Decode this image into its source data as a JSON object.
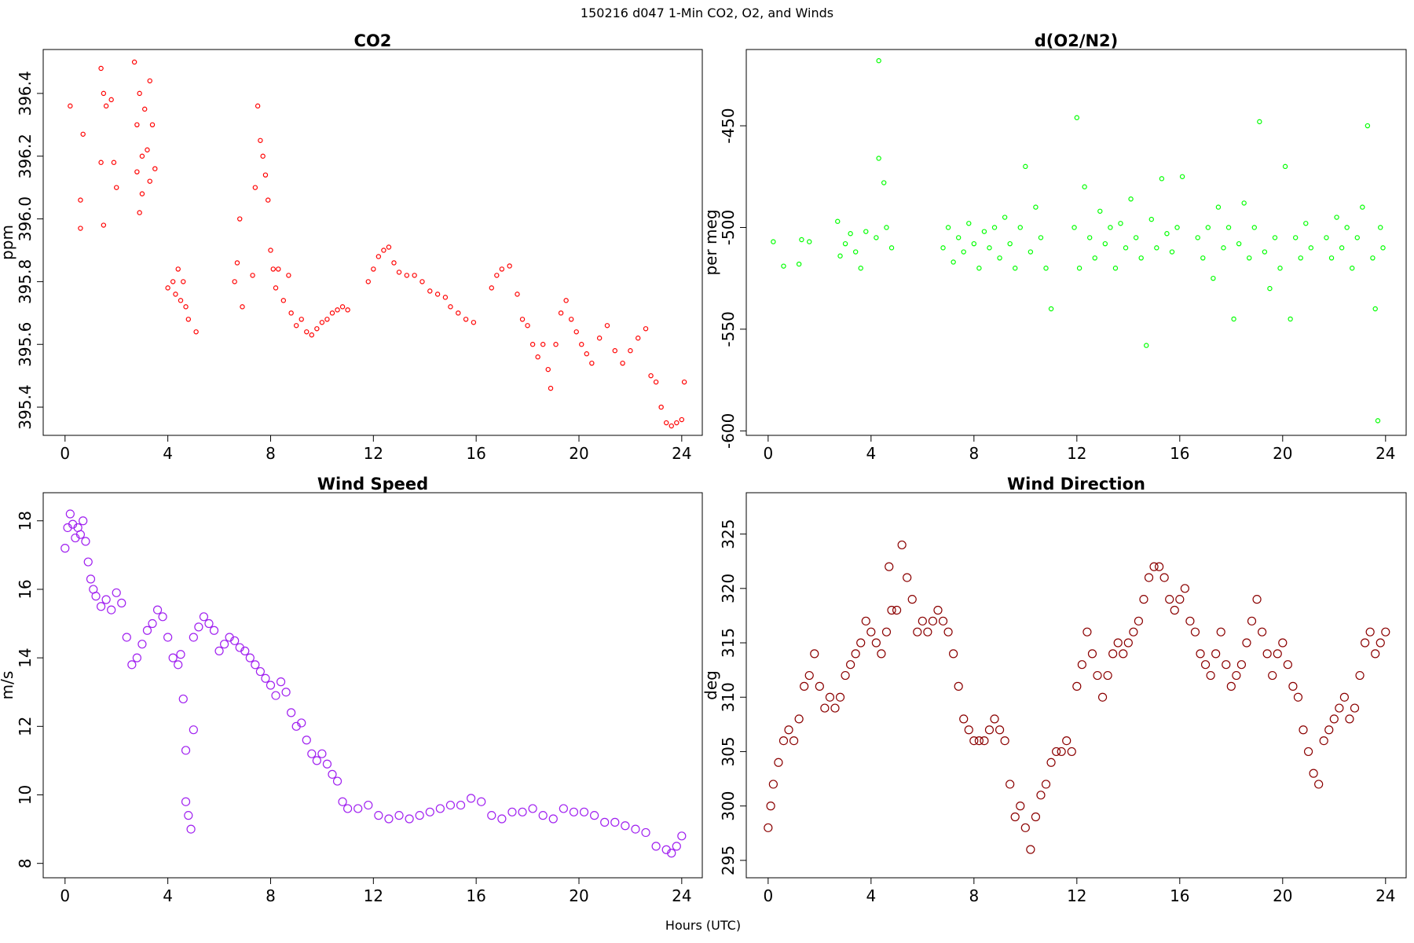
{
  "title": "150216   d047   1-Min CO2, O2, and Winds",
  "xlabel": "Hours (UTC)",
  "chart_data": [
    {
      "type": "scatter",
      "title": "CO2",
      "ylabel": "ppm",
      "color": "#ff0000",
      "x": [
        0.2,
        0.6,
        0.6,
        0.7,
        1.4,
        1.4,
        1.5,
        1.5,
        1.6,
        1.8,
        1.9,
        2.0,
        2.7,
        2.8,
        2.8,
        2.9,
        2.9,
        3.0,
        3.0,
        3.1,
        3.2,
        3.3,
        3.3,
        3.4,
        3.5,
        4.0,
        4.2,
        4.3,
        4.4,
        4.5,
        4.6,
        4.7,
        4.8,
        5.1,
        6.6,
        6.7,
        6.8,
        6.9,
        7.3,
        7.4,
        7.5,
        7.6,
        7.7,
        7.8,
        7.9,
        8.0,
        8.1,
        8.2,
        8.3,
        8.5,
        8.7,
        8.8,
        9.0,
        9.2,
        9.4,
        9.6,
        9.8,
        10.0,
        10.2,
        10.4,
        10.6,
        10.8,
        11.0,
        11.8,
        12.0,
        12.2,
        12.4,
        12.6,
        12.8,
        13.0,
        13.3,
        13.6,
        13.9,
        14.2,
        14.5,
        14.8,
        15.0,
        15.3,
        15.6,
        15.9,
        16.6,
        16.8,
        17.0,
        17.3,
        17.6,
        17.8,
        18.0,
        18.2,
        18.4,
        18.6,
        18.8,
        18.9,
        19.1,
        19.3,
        19.5,
        19.7,
        19.9,
        20.1,
        20.3,
        20.5,
        20.8,
        21.1,
        21.4,
        21.7,
        22.0,
        22.3,
        22.6,
        22.8,
        23.0,
        23.2,
        23.4,
        23.6,
        23.8,
        24.0,
        24.1
      ],
      "values": [
        396.36,
        396.06,
        395.97,
        396.27,
        396.48,
        396.18,
        395.98,
        396.4,
        396.36,
        396.38,
        396.18,
        396.1,
        396.5,
        396.3,
        396.15,
        396.4,
        396.02,
        396.2,
        396.08,
        396.35,
        396.22,
        396.44,
        396.12,
        396.3,
        396.16,
        395.78,
        395.8,
        395.76,
        395.84,
        395.74,
        395.8,
        395.72,
        395.68,
        395.64,
        395.8,
        395.86,
        396.0,
        395.72,
        395.82,
        396.1,
        396.36,
        396.25,
        396.2,
        396.14,
        396.06,
        395.9,
        395.84,
        395.78,
        395.84,
        395.74,
        395.82,
        395.7,
        395.66,
        395.68,
        395.64,
        395.63,
        395.65,
        395.67,
        395.68,
        395.7,
        395.71,
        395.72,
        395.71,
        395.8,
        395.84,
        395.88,
        395.9,
        395.91,
        395.86,
        395.83,
        395.82,
        395.82,
        395.8,
        395.77,
        395.76,
        395.75,
        395.72,
        395.7,
        395.68,
        395.67,
        395.78,
        395.82,
        395.84,
        395.85,
        395.76,
        395.68,
        395.66,
        395.6,
        395.56,
        395.6,
        395.52,
        395.46,
        395.6,
        395.7,
        395.74,
        395.68,
        395.64,
        395.6,
        395.57,
        395.54,
        395.62,
        395.66,
        395.58,
        395.54,
        395.58,
        395.62,
        395.65,
        395.5,
        395.48,
        395.4,
        395.35,
        395.34,
        395.35,
        395.36,
        395.48
      ],
      "xlim": [
        -0.85,
        24.8
      ],
      "xticks": [
        0,
        4,
        8,
        12,
        16,
        20,
        24
      ],
      "ylim": [
        395.31,
        396.54
      ],
      "yticks": [
        395.4,
        395.6,
        395.8,
        {
          "value": 396,
          "label": "396.0"
        },
        396.2,
        396.4
      ]
    },
    {
      "type": "scatter",
      "title": "d(O2/N2)",
      "ylabel": "per meg",
      "color": "#00ff00",
      "x": [
        0.2,
        0.6,
        1.2,
        1.3,
        1.6,
        2.7,
        2.8,
        3.0,
        3.2,
        3.4,
        3.6,
        3.8,
        4.2,
        4.3,
        4.3,
        4.5,
        4.6,
        4.8,
        6.8,
        7.0,
        7.2,
        7.4,
        7.6,
        7.8,
        8.0,
        8.2,
        8.4,
        8.6,
        8.8,
        9.0,
        9.2,
        9.4,
        9.6,
        9.8,
        10.0,
        10.2,
        10.4,
        10.6,
        10.8,
        11.0,
        11.9,
        12.0,
        12.1,
        12.3,
        12.5,
        12.7,
        12.9,
        13.1,
        13.3,
        13.5,
        13.7,
        13.9,
        14.1,
        14.3,
        14.5,
        14.7,
        14.9,
        15.1,
        15.3,
        15.5,
        15.7,
        15.9,
        16.1,
        16.7,
        16.9,
        17.1,
        17.3,
        17.5,
        17.7,
        17.9,
        18.1,
        18.3,
        18.5,
        18.7,
        18.9,
        19.1,
        19.3,
        19.5,
        19.7,
        19.9,
        20.1,
        20.3,
        20.5,
        20.7,
        20.9,
        21.1,
        21.7,
        21.9,
        22.1,
        22.3,
        22.5,
        22.7,
        22.9,
        23.1,
        23.3,
        23.5,
        23.6,
        23.7,
        23.8,
        23.9
      ],
      "values": [
        -507,
        -519,
        -518,
        -506,
        -507,
        -497,
        -514,
        -508,
        -503,
        -512,
        -520,
        -502,
        -505,
        -418,
        -466,
        -478,
        -500,
        -510,
        -510,
        -500,
        -517,
        -505,
        -512,
        -498,
        -508,
        -520,
        -502,
        -510,
        -500,
        -515,
        -495,
        -508,
        -520,
        -500,
        -470,
        -512,
        -490,
        -505,
        -520,
        -540,
        -500,
        -446,
        -520,
        -480,
        -505,
        -515,
        -492,
        -508,
        -500,
        -520,
        -498,
        -510,
        -486,
        -505,
        -515,
        -558,
        -496,
        -510,
        -476,
        -503,
        -512,
        -500,
        -475,
        -505,
        -515,
        -500,
        -525,
        -490,
        -510,
        -500,
        -545,
        -508,
        -488,
        -515,
        -500,
        -448,
        -512,
        -530,
        -505,
        -520,
        -470,
        -545,
        -505,
        -515,
        -498,
        -510,
        -505,
        -515,
        -495,
        -510,
        -500,
        -520,
        -505,
        -490,
        -450,
        -515,
        -540,
        -595,
        -500,
        -510
      ],
      "xlim": [
        -0.85,
        24.8
      ],
      "xticks": [
        0,
        4,
        8,
        12,
        16,
        20,
        24
      ],
      "ylim": [
        -602.2,
        -412.5
      ],
      "yticks": [
        -600,
        -550,
        -500,
        -450
      ]
    },
    {
      "type": "scatter",
      "title": "Wind Speed",
      "ylabel": "m/s",
      "color": "#a020f0",
      "x": [
        0,
        0.1,
        0.2,
        0.3,
        0.4,
        0.5,
        0.6,
        0.7,
        0.8,
        0.9,
        1.0,
        1.1,
        1.2,
        1.4,
        1.6,
        1.8,
        2.0,
        2.2,
        2.4,
        2.6,
        2.8,
        3.0,
        3.2,
        3.4,
        3.6,
        3.8,
        4.0,
        4.2,
        4.4,
        4.5,
        4.6,
        4.7,
        4.7,
        4.8,
        4.9,
        5.0,
        5.0,
        5.2,
        5.4,
        5.6,
        5.8,
        6.0,
        6.2,
        6.4,
        6.6,
        6.8,
        7.0,
        7.2,
        7.4,
        7.6,
        7.8,
        8.0,
        8.2,
        8.4,
        8.6,
        8.8,
        9.0,
        9.2,
        9.4,
        9.6,
        9.8,
        10.0,
        10.2,
        10.4,
        10.6,
        10.8,
        11.0,
        11.4,
        11.8,
        12.2,
        12.6,
        13.0,
        13.4,
        13.8,
        14.2,
        14.6,
        15.0,
        15.4,
        15.8,
        16.2,
        16.6,
        17.0,
        17.4,
        17.8,
        18.2,
        18.6,
        19.0,
        19.4,
        19.8,
        20.2,
        20.6,
        21.0,
        21.4,
        21.8,
        22.2,
        22.6,
        23.0,
        23.4,
        23.6,
        23.8,
        24.0
      ],
      "values": [
        17.2,
        17.8,
        18.2,
        17.9,
        17.5,
        17.8,
        17.6,
        18.0,
        17.4,
        16.8,
        16.3,
        16.0,
        15.8,
        15.5,
        15.7,
        15.4,
        15.9,
        15.6,
        14.6,
        13.8,
        14.0,
        14.4,
        14.8,
        15.0,
        15.4,
        15.2,
        14.6,
        14.0,
        13.8,
        14.1,
        12.8,
        11.3,
        9.8,
        9.4,
        9.0,
        11.9,
        14.6,
        14.9,
        15.2,
        15.0,
        14.8,
        14.2,
        14.4,
        14.6,
        14.5,
        14.3,
        14.2,
        14.0,
        13.8,
        13.6,
        13.4,
        13.2,
        12.9,
        13.3,
        13.0,
        12.4,
        12.0,
        12.1,
        11.6,
        11.2,
        11.0,
        11.2,
        10.9,
        10.6,
        10.4,
        9.8,
        9.6,
        9.6,
        9.7,
        9.4,
        9.3,
        9.4,
        9.3,
        9.4,
        9.5,
        9.6,
        9.7,
        9.7,
        9.9,
        9.8,
        9.4,
        9.3,
        9.5,
        9.5,
        9.6,
        9.4,
        9.3,
        9.6,
        9.5,
        9.5,
        9.4,
        9.2,
        9.2,
        9.1,
        9.0,
        8.9,
        8.5,
        8.4,
        8.3,
        8.5,
        8.8
      ],
      "xlim": [
        -0.85,
        24.8
      ],
      "xticks": [
        0,
        4,
        8,
        12,
        16,
        20,
        24
      ],
      "ylim": [
        7.58,
        18.82
      ],
      "yticks": [
        8,
        10,
        12,
        14,
        16,
        18
      ]
    },
    {
      "type": "scatter",
      "title": "Wind Direction",
      "ylabel": "deg",
      "color": "#8b0000",
      "x": [
        0,
        0.1,
        0.2,
        0.4,
        0.6,
        0.8,
        1.0,
        1.2,
        1.4,
        1.6,
        1.8,
        2.0,
        2.2,
        2.4,
        2.6,
        2.8,
        3.0,
        3.2,
        3.4,
        3.6,
        3.8,
        4.0,
        4.2,
        4.4,
        4.6,
        4.7,
        4.8,
        5.0,
        5.2,
        5.4,
        5.6,
        5.8,
        6.0,
        6.2,
        6.4,
        6.6,
        6.8,
        7.0,
        7.2,
        7.4,
        7.6,
        7.8,
        8.0,
        8.2,
        8.4,
        8.6,
        8.8,
        9.0,
        9.2,
        9.4,
        9.6,
        9.8,
        10.0,
        10.2,
        10.4,
        10.6,
        10.8,
        11.0,
        11.2,
        11.4,
        11.6,
        11.8,
        12.0,
        12.2,
        12.4,
        12.6,
        12.8,
        13.0,
        13.2,
        13.4,
        13.6,
        13.8,
        14.0,
        14.2,
        14.4,
        14.6,
        14.8,
        15.0,
        15.2,
        15.4,
        15.6,
        15.8,
        16.0,
        16.2,
        16.4,
        16.6,
        16.8,
        17.0,
        17.2,
        17.4,
        17.6,
        17.8,
        18.0,
        18.2,
        18.4,
        18.6,
        18.8,
        19.0,
        19.2,
        19.4,
        19.6,
        19.8,
        20.0,
        20.2,
        20.4,
        20.6,
        20.8,
        21.0,
        21.2,
        21.4,
        21.6,
        21.8,
        22.0,
        22.2,
        22.4,
        22.6,
        22.8,
        23.0,
        23.2,
        23.4,
        23.6,
        23.8,
        24.0
      ],
      "values": [
        298,
        300,
        302,
        304,
        306,
        307,
        306,
        308,
        311,
        312,
        314,
        311,
        309,
        310,
        309,
        310,
        312,
        313,
        314,
        315,
        317,
        316,
        315,
        314,
        316,
        322,
        318,
        318,
        324,
        321,
        319,
        316,
        317,
        316,
        317,
        318,
        317,
        316,
        314,
        311,
        308,
        307,
        306,
        306,
        306,
        307,
        308,
        307,
        306,
        302,
        299,
        300,
        298,
        296,
        299,
        301,
        302,
        304,
        305,
        305,
        306,
        305,
        311,
        313,
        316,
        314,
        312,
        310,
        312,
        314,
        315,
        314,
        315,
        316,
        317,
        319,
        321,
        322,
        322,
        321,
        319,
        318,
        319,
        320,
        317,
        316,
        314,
        313,
        312,
        314,
        316,
        313,
        311,
        312,
        313,
        315,
        317,
        319,
        316,
        314,
        312,
        314,
        315,
        313,
        311,
        310,
        307,
        305,
        303,
        302,
        306,
        307,
        308,
        309,
        310,
        308,
        309,
        312,
        315,
        316,
        314,
        315,
        316
      ],
      "xlim": [
        -0.85,
        24.8
      ],
      "xticks": [
        0,
        4,
        8,
        12,
        16,
        20,
        24
      ],
      "ylim": [
        293.4,
        328.8
      ],
      "yticks": [
        295,
        300,
        305,
        310,
        315,
        320,
        325
      ]
    }
  ]
}
